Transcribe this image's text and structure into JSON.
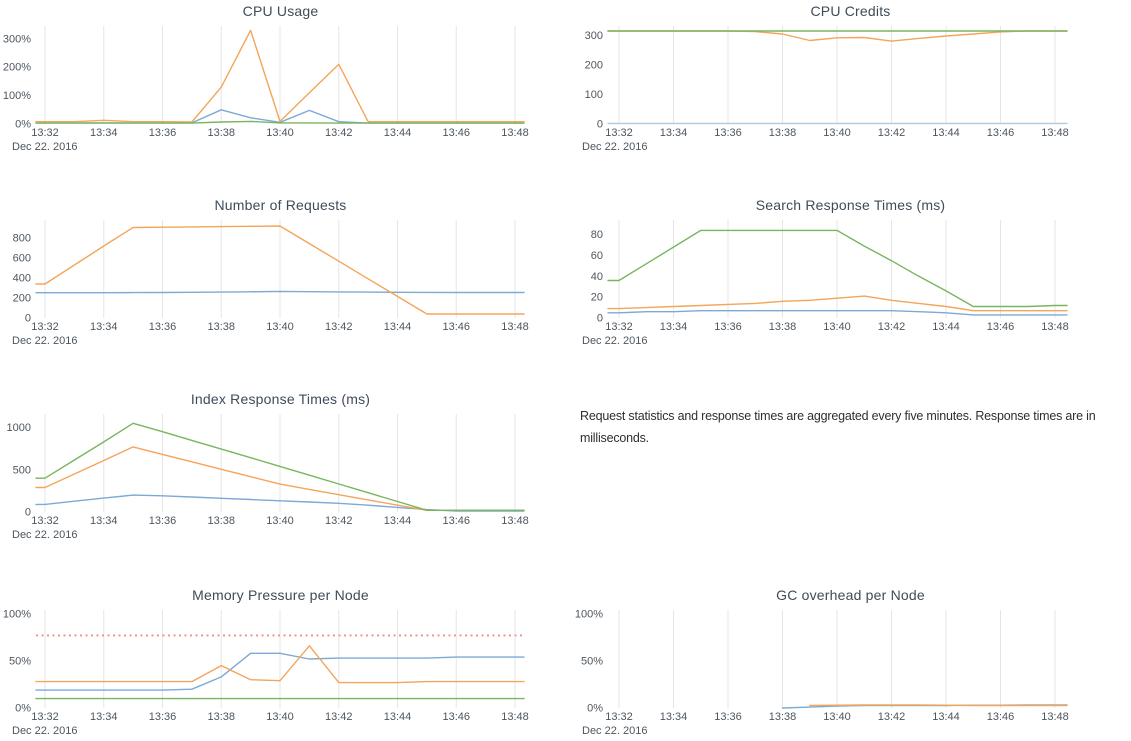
{
  "palette": {
    "blue": "#7ca9d6",
    "blue_pale": "#a9cbe6",
    "orange": "#f3a55a",
    "green": "#79b55f",
    "red": "#ef8f8f",
    "grid": "#e5e5e5"
  },
  "note": {
    "line1": "Request statistics and response times are aggregated every five minutes. Response times are in",
    "line2": "milliseconds."
  },
  "chart_data": [
    {
      "id": "cpu-usage",
      "type": "line",
      "title": "CPU Usage",
      "column": "left",
      "ylim": [
        0,
        345
      ],
      "yticks": [
        {
          "value": 0,
          "label": "0%"
        },
        {
          "value": 100,
          "label": "100%"
        },
        {
          "value": 200,
          "label": "200%"
        },
        {
          "value": 300,
          "label": "300%"
        }
      ],
      "x_tick_labels": [
        "13:32",
        "13:34",
        "13:36",
        "13:38",
        "13:40",
        "13:42",
        "13:44",
        "13:46",
        "13:48"
      ],
      "x_date_label": "Dec 22. 2016",
      "x_step_minutes": 1,
      "grid": true,
      "legend": "none",
      "series": [
        {
          "name": "node-blue",
          "color": "blue",
          "values": [
            4,
            4,
            4,
            4,
            4,
            4,
            50,
            22,
            6,
            48,
            8,
            3,
            3,
            3,
            3,
            3,
            3
          ]
        },
        {
          "name": "node-orange",
          "color": "orange",
          "values": [
            8,
            8,
            13,
            8,
            8,
            7,
            130,
            330,
            9,
            110,
            210,
            8,
            8,
            8,
            8,
            8,
            8
          ]
        },
        {
          "name": "node-green",
          "color": "green",
          "values": [
            3,
            3,
            3,
            3,
            3,
            3,
            7,
            9,
            4,
            4,
            3,
            3,
            3,
            3,
            3,
            3,
            3
          ]
        }
      ]
    },
    {
      "id": "cpu-credits",
      "type": "line",
      "title": "CPU Credits",
      "column": "right",
      "ylim": [
        0,
        332
      ],
      "yticks": [
        {
          "value": 0,
          "label": "0"
        },
        {
          "value": 100,
          "label": "100"
        },
        {
          "value": 200,
          "label": "200"
        },
        {
          "value": 300,
          "label": "300"
        }
      ],
      "x_tick_labels": [
        "13:32",
        "13:34",
        "13:36",
        "13:38",
        "13:40",
        "13:42",
        "13:44",
        "13:46",
        "13:48"
      ],
      "x_date_label": "Dec 22. 2016",
      "x_step_minutes": 1,
      "grid": true,
      "legend": "none",
      "series": [
        {
          "name": "node-blue",
          "color": "blue_pale",
          "values": [
            2,
            2,
            2,
            2,
            2,
            2,
            2,
            2,
            2,
            2,
            2,
            2,
            2,
            2,
            2,
            2,
            2
          ]
        },
        {
          "name": "node-orange",
          "color": "orange",
          "values": [
            315,
            315,
            315,
            315,
            315,
            313,
            305,
            283,
            292,
            293,
            281,
            290,
            298,
            305,
            312,
            315,
            315
          ]
        },
        {
          "name": "node-green",
          "color": "green",
          "values": [
            315,
            315,
            315,
            315,
            315,
            315,
            315,
            315,
            315,
            315,
            315,
            315,
            315,
            315,
            315,
            315,
            315
          ]
        }
      ]
    },
    {
      "id": "number-of-requests",
      "type": "line",
      "title": "Number of Requests",
      "column": "left",
      "ylim": [
        0,
        980
      ],
      "yticks": [
        {
          "value": 0,
          "label": "0"
        },
        {
          "value": 200,
          "label": "200"
        },
        {
          "value": 400,
          "label": "400"
        },
        {
          "value": 600,
          "label": "600"
        },
        {
          "value": 800,
          "label": "800"
        }
      ],
      "x_tick_labels": [
        "13:32",
        "13:34",
        "13:36",
        "13:38",
        "13:40",
        "13:42",
        "13:44",
        "13:46",
        "13:48"
      ],
      "x_date_label": "Dec 22. 2016",
      "x_step_minutes": 1,
      "grid": true,
      "legend": "none",
      "series": [
        {
          "name": "requests-blue",
          "color": "blue",
          "values": [
            253,
            253,
            253,
            254,
            255,
            257,
            259,
            262,
            266,
            263,
            261,
            259,
            257,
            256,
            255,
            255,
            255
          ]
        },
        {
          "name": "requests-orange",
          "color": "orange",
          "values": [
            340,
            530,
            720,
            905,
            908,
            911,
            914,
            917,
            920,
            744,
            568,
            392,
            216,
            40,
            40,
            40,
            40
          ]
        }
      ]
    },
    {
      "id": "search-response-times",
      "type": "line",
      "title": "Search Response Times (ms)",
      "column": "right",
      "ylim": [
        0,
        94
      ],
      "yticks": [
        {
          "value": 0,
          "label": "0"
        },
        {
          "value": 20,
          "label": "20"
        },
        {
          "value": 40,
          "label": "40"
        },
        {
          "value": 60,
          "label": "60"
        },
        {
          "value": 80,
          "label": "80"
        }
      ],
      "x_tick_labels": [
        "13:32",
        "13:34",
        "13:36",
        "13:38",
        "13:40",
        "13:42",
        "13:44",
        "13:46",
        "13:48"
      ],
      "x_date_label": "Dec 22. 2016",
      "x_step_minutes": 1,
      "grid": true,
      "legend": "none",
      "series": [
        {
          "name": "search-blue",
          "color": "blue",
          "values": [
            5,
            6,
            6,
            7,
            7,
            7,
            7,
            7,
            7,
            7,
            7,
            6,
            5,
            3,
            3,
            3,
            3
          ]
        },
        {
          "name": "search-orange",
          "color": "orange",
          "values": [
            9,
            10,
            11,
            12,
            13,
            14,
            16,
            17,
            19,
            21,
            17,
            14,
            11,
            7,
            7,
            7,
            7
          ]
        },
        {
          "name": "search-green",
          "color": "green",
          "values": [
            36,
            52,
            68,
            84,
            84,
            84,
            84,
            84,
            84,
            69,
            55,
            40,
            26,
            11,
            11,
            11,
            12
          ]
        }
      ]
    },
    {
      "id": "index-response-times",
      "type": "line",
      "title": "Index Response Times (ms)",
      "column": "left",
      "ylim": [
        0,
        1160
      ],
      "yticks": [
        {
          "value": 0,
          "label": "0"
        },
        {
          "value": 500,
          "label": "500"
        },
        {
          "value": 1000,
          "label": "1000"
        }
      ],
      "x_tick_labels": [
        "13:32",
        "13:34",
        "13:36",
        "13:38",
        "13:40",
        "13:42",
        "13:44",
        "13:46",
        "13:48"
      ],
      "x_date_label": "Dec 22. 2016",
      "x_step_minutes": 1,
      "grid": true,
      "legend": "none",
      "series": [
        {
          "name": "index-blue",
          "color": "blue",
          "values": [
            90,
            128,
            165,
            200,
            192,
            178,
            162,
            148,
            132,
            118,
            103,
            80,
            55,
            28,
            12,
            12,
            12
          ]
        },
        {
          "name": "index-orange",
          "color": "orange",
          "values": [
            290,
            450,
            610,
            770,
            682,
            594,
            506,
            418,
            330,
            268,
            205,
            143,
            80,
            20,
            20,
            20,
            20
          ]
        },
        {
          "name": "index-green",
          "color": "green",
          "values": [
            400,
            615,
            830,
            1050,
            950,
            848,
            745,
            643,
            540,
            436,
            332,
            228,
            124,
            20,
            20,
            20,
            20
          ]
        }
      ]
    },
    {
      "id": "memory-pressure",
      "type": "line",
      "title": "Memory Pressure per Node",
      "column": "left",
      "ylim": [
        0,
        104
      ],
      "yticks": [
        {
          "value": 0,
          "label": "0%"
        },
        {
          "value": 50,
          "label": "50%"
        },
        {
          "value": 100,
          "label": "100%"
        }
      ],
      "x_tick_labels": [
        "13:32",
        "13:34",
        "13:36",
        "13:38",
        "13:40",
        "13:42",
        "13:44",
        "13:46",
        "13:48"
      ],
      "x_date_label": "Dec 22. 2016",
      "x_step_minutes": 1,
      "grid": true,
      "legend": "none",
      "threshold": {
        "value": 77,
        "color": "red",
        "style": "dotted"
      },
      "series": [
        {
          "name": "memory-blue",
          "color": "blue",
          "values": [
            19,
            19,
            19,
            19,
            19,
            20,
            33,
            58,
            58,
            52,
            53,
            53,
            53,
            53,
            54,
            54,
            54
          ]
        },
        {
          "name": "memory-orange",
          "color": "orange",
          "values": [
            28,
            28,
            28,
            28,
            28,
            28,
            45,
            30,
            29,
            66,
            27,
            27,
            27,
            28,
            28,
            28,
            28
          ]
        },
        {
          "name": "memory-green",
          "color": "green",
          "values": [
            10,
            10,
            10,
            10,
            10,
            10,
            10,
            10,
            10,
            10,
            10,
            10,
            10,
            10,
            10,
            10,
            10
          ]
        }
      ]
    },
    {
      "id": "gc-overhead",
      "type": "line",
      "title": "GC overhead per Node",
      "column": "right",
      "ylim": [
        0,
        104
      ],
      "yticks": [
        {
          "value": 0,
          "label": "0%"
        },
        {
          "value": 50,
          "label": "50%"
        },
        {
          "value": 100,
          "label": "100%"
        }
      ],
      "x_tick_labels": [
        "13:32",
        "13:34",
        "13:36",
        "13:38",
        "13:40",
        "13:42",
        "13:44",
        "13:46",
        "13:48"
      ],
      "x_date_label": "Dec 22. 2016",
      "x_step_minutes": 1,
      "grid": true,
      "legend": "none",
      "series": [
        {
          "name": "gc-blue",
          "color": "blue",
          "values": [
            null,
            null,
            null,
            null,
            null,
            null,
            0,
            1,
            2,
            2.5,
            2.5,
            2.5,
            2.5,
            3,
            3,
            3.2,
            3.2
          ]
        },
        {
          "name": "gc-orange",
          "color": "orange",
          "values": [
            null,
            null,
            null,
            null,
            null,
            null,
            null,
            2.8,
            3,
            3.2,
            3.2,
            3.2,
            3,
            2.6,
            2.6,
            2.6,
            2.6
          ]
        }
      ]
    }
  ]
}
